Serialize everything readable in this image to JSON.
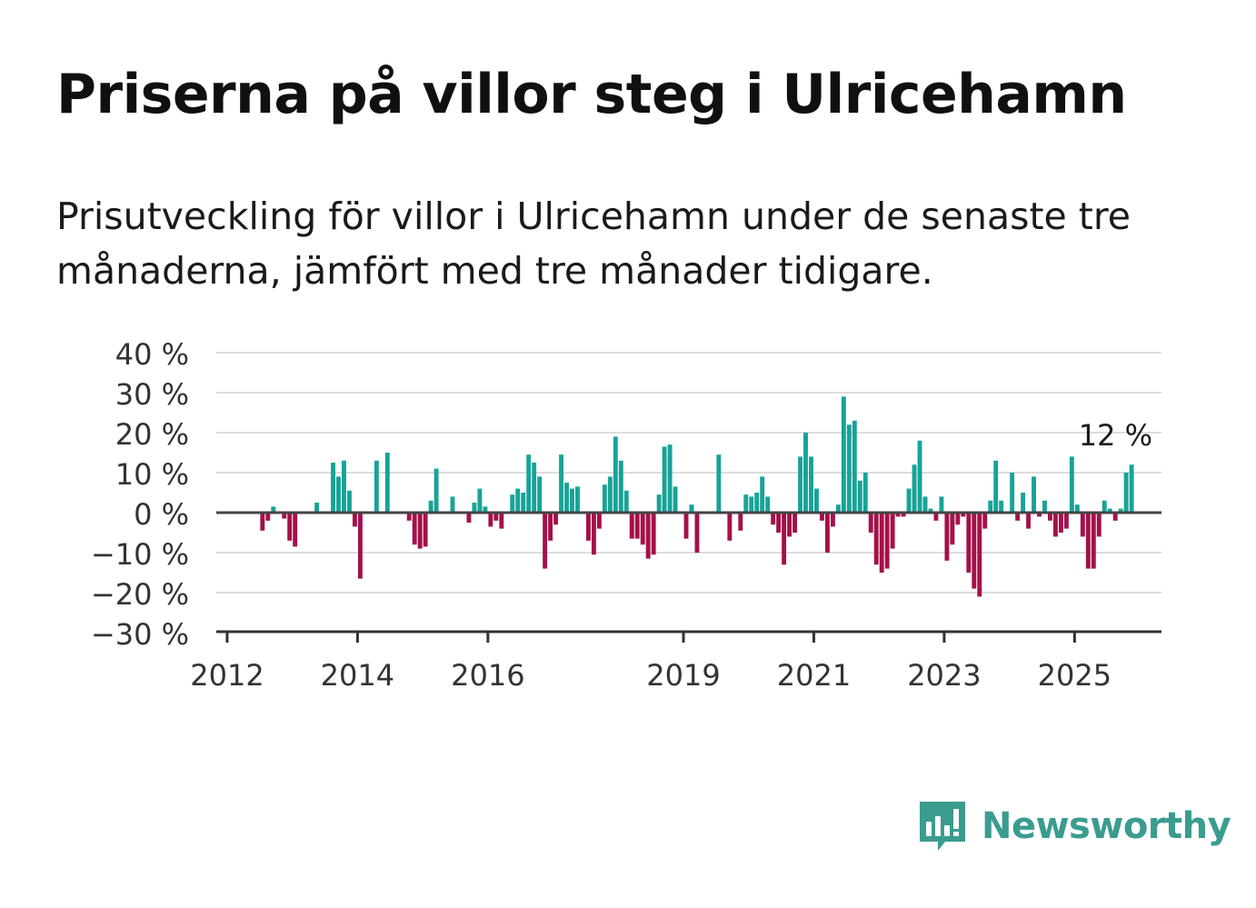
{
  "header": {
    "title": "Priserna på villor steg i Ulricehamn",
    "subtitle": "Prisutveckling för villor i Ulricehamn under de senaste tre månaderna, jämfört med tre månader tidigare."
  },
  "brand": {
    "name": "Newsworthy",
    "color": "#3a9c8f"
  },
  "colors": {
    "positive": "#17a398",
    "negative": "#a5104a",
    "grid": "#dddddd",
    "zero_line": "#444444",
    "axis": "#333333"
  },
  "chart_data": {
    "type": "bar",
    "title": "Priserna på villor steg i Ulricehamn",
    "xlabel": "",
    "ylabel": "",
    "unit": "%",
    "ylim": [
      -30,
      40
    ],
    "y_ticks": [
      40,
      30,
      20,
      10,
      0,
      -10,
      -20,
      -30
    ],
    "y_tick_labels": [
      "40 %",
      "30 %",
      "20 %",
      "10 %",
      "0 %",
      "−10 %",
      "−20 %",
      "−30 %"
    ],
    "x_range": [
      "2011-11",
      "2026-05"
    ],
    "x_ticks": [
      "2012-01",
      "2014-01",
      "2016-01",
      "2019-01",
      "2021-01",
      "2023-01",
      "2025-01"
    ],
    "x_tick_labels": [
      "2012",
      "2014",
      "2016",
      "2019",
      "2021",
      "2023",
      "2025"
    ],
    "grid": true,
    "last_value_label": "12 %",
    "start_month": "2012-07",
    "values": [
      -4.5,
      -2,
      1.5,
      0,
      -1.5,
      -7,
      -8.5,
      0,
      0,
      0,
      2.5,
      0,
      0,
      12.5,
      9,
      13,
      5.5,
      -3.5,
      -16.5,
      0,
      0,
      13,
      0,
      15,
      0,
      0,
      0,
      -2,
      -8,
      -9,
      -8.5,
      3,
      11,
      0,
      0,
      4,
      0,
      0,
      -2.5,
      2.5,
      6,
      1.5,
      -3.5,
      -2,
      -4,
      0,
      4.5,
      6,
      5,
      14.5,
      12.5,
      9,
      -14,
      -7,
      -3,
      14.5,
      7.5,
      6,
      6.5,
      0,
      -7,
      -10.5,
      -4,
      7,
      9,
      19,
      13,
      5.5,
      -6.5,
      -6.5,
      -8,
      -11.5,
      -10.5,
      4.5,
      16.5,
      17,
      6.5,
      0,
      -6.5,
      2,
      -10,
      0,
      0,
      0,
      14.5,
      0,
      -7,
      0,
      -4.5,
      4.5,
      4,
      5,
      9,
      4,
      -3,
      -5,
      -13,
      -6,
      -5,
      14,
      20,
      14,
      6,
      -2,
      -10,
      -3.5,
      2,
      29,
      22,
      23,
      8,
      10,
      -5,
      -13,
      -15,
      -14,
      -9,
      -1,
      -1,
      6,
      12,
      18,
      4,
      1,
      -2,
      4,
      -12,
      -8,
      -3,
      -1,
      -15,
      -19,
      -21,
      -4,
      3,
      13,
      3,
      0,
      10,
      -2,
      5,
      -4,
      9,
      -1,
      3,
      -2,
      -6,
      -5,
      -4,
      14,
      2,
      -6,
      -14,
      -14,
      -6,
      3,
      1,
      -2,
      1,
      10,
      12
    ]
  }
}
